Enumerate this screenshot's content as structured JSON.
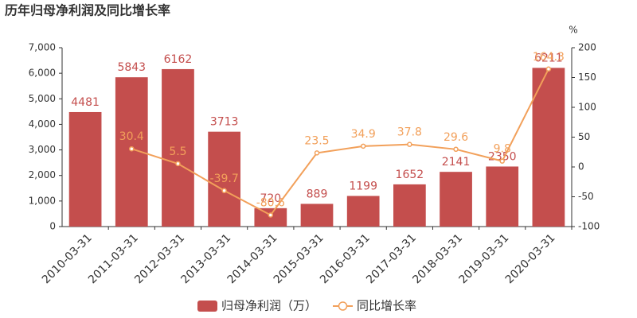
{
  "chart_data": {
    "type": "combo",
    "title": "历年归母净利润及同比增长率",
    "y2_unit": "%",
    "categories": [
      "2010-03-31",
      "2011-03-31",
      "2012-03-31",
      "2013-03-31",
      "2014-03-31",
      "2015-03-31",
      "2016-03-31",
      "2017-03-31",
      "2018-03-31",
      "2019-03-31",
      "2020-03-31"
    ],
    "series": [
      {
        "name": "归母净利润（万）",
        "type": "bar",
        "color": "#c44e4d",
        "values": [
          4481,
          5843,
          6162,
          3713,
          720,
          889,
          1199,
          1652,
          2141,
          2350,
          6211
        ]
      },
      {
        "name": "同比增长率",
        "type": "line",
        "axis": "y2",
        "color": "#f2a05a",
        "values": [
          null,
          30.4,
          5.5,
          -39.7,
          -80.6,
          23.5,
          34.9,
          37.8,
          29.6,
          9.8,
          164.3
        ]
      }
    ],
    "ylim": [
      0,
      7000
    ],
    "yticks": [
      0,
      {
        "value": 1000,
        "label": "1,000"
      },
      {
        "value": 2000,
        "label": "2,000"
      },
      {
        "value": 3000,
        "label": "3,000"
      },
      {
        "value": 4000,
        "label": "4,000"
      },
      {
        "value": 5000,
        "label": "5,000"
      },
      {
        "value": 6000,
        "label": "6,000"
      },
      {
        "value": 7000,
        "label": "7,000"
      }
    ],
    "y2lim": [
      -100,
      200
    ],
    "y2ticks": [
      -100,
      -50,
      0,
      50,
      100,
      150,
      200
    ],
    "grid": false,
    "legend": "bottom"
  }
}
